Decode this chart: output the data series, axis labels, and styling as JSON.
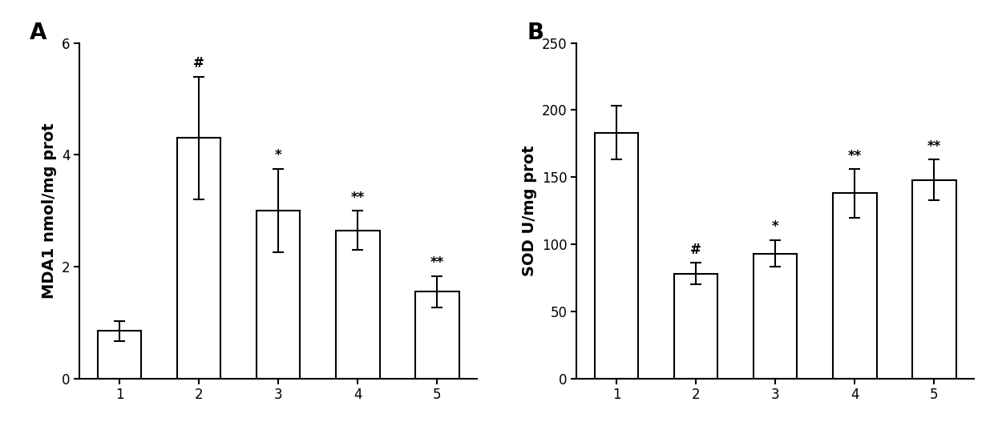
{
  "panel_A": {
    "label": "A",
    "categories": [
      "1",
      "2",
      "3",
      "4",
      "5"
    ],
    "values": [
      0.85,
      4.3,
      3.0,
      2.65,
      1.55
    ],
    "errors": [
      0.18,
      1.1,
      0.75,
      0.35,
      0.28
    ],
    "ylabel": "MDA1 nmol/mg prot",
    "ylim": [
      0,
      6
    ],
    "yticks": [
      0,
      2,
      4,
      6
    ],
    "annotations": [
      "",
      "#",
      "*",
      "**",
      "**"
    ],
    "bar_color": "#FFFFFF",
    "bar_edgecolor": "#000000"
  },
  "panel_B": {
    "label": "B",
    "categories": [
      "1",
      "2",
      "3",
      "4",
      "5"
    ],
    "values": [
      183,
      78,
      93,
      138,
      148
    ],
    "errors": [
      20,
      8,
      10,
      18,
      15
    ],
    "ylabel": "SOD U/mg prot",
    "ylim": [
      0,
      250
    ],
    "yticks": [
      0,
      50,
      100,
      150,
      200,
      250
    ],
    "annotations": [
      "",
      "#",
      "*",
      "**",
      "**"
    ],
    "bar_color": "#FFFFFF",
    "bar_edgecolor": "#000000"
  },
  "bar_width": 0.55,
  "capsize": 5,
  "annotation_fontsize": 12,
  "label_fontsize": 14,
  "tick_fontsize": 12,
  "panel_label_fontsize": 20,
  "background_color": "#FFFFFF",
  "linewidth": 1.5,
  "figure_width": 12.4,
  "figure_height": 5.37,
  "dpi": 100
}
